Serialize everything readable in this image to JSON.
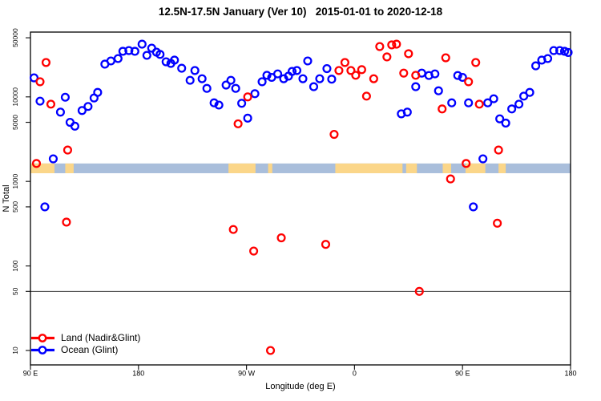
{
  "chart_data": {
    "type": "scatter",
    "title": "12.5N-17.5N January (Ver 10)   2015-01-01 to 2020-12-18",
    "xlabel": "Longitude (deg E)",
    "ylabel": "N Total",
    "x_axis": {
      "min": 90,
      "max": 540,
      "ticks": [
        {
          "value": 90,
          "label": "90 E"
        },
        {
          "value": 180,
          "label": "180"
        },
        {
          "value": 270,
          "label": "90 W"
        },
        {
          "value": 360,
          "label": "0"
        },
        {
          "value": 450,
          "label": "90 E"
        },
        {
          "value": 540,
          "label": "180"
        }
      ]
    },
    "y_axis": {
      "scale": "log",
      "min": 6.75,
      "max": 58400,
      "ticks": [
        {
          "value": 50000,
          "label": "50000"
        },
        {
          "value": 10000,
          "label": "10000"
        },
        {
          "value": 5000,
          "label": "5000"
        },
        {
          "value": 1000,
          "label": "1000"
        },
        {
          "value": 500,
          "label": "500"
        },
        {
          "value": 100,
          "label": "100"
        },
        {
          "value": 50,
          "label": "50"
        },
        {
          "value": 10,
          "label": "10"
        }
      ]
    },
    "reference_line": {
      "value": 50,
      "color": "#3c3c3c"
    },
    "map_band": {
      "n_range": [
        1250,
        1630
      ],
      "ocean_color": "#a9bedb",
      "land_color": "#fbd689",
      "land_segments_deg": [
        [
          90,
          110
        ],
        [
          119,
          126
        ],
        [
          255,
          277.5
        ],
        [
          288,
          291.5
        ],
        [
          344,
          400
        ],
        [
          403,
          412
        ],
        [
          433.5,
          440.5
        ],
        [
          452.5,
          469
        ],
        [
          480,
          486
        ]
      ]
    },
    "series": [
      {
        "name": "Land (Nadir&Glint)",
        "color": "#ff0000",
        "points": [
          [
            95,
            1630
          ],
          [
            98,
            15100
          ],
          [
            103,
            25500
          ],
          [
            107,
            8200
          ],
          [
            120,
            330
          ],
          [
            121,
            2350
          ],
          [
            259,
            270
          ],
          [
            263,
            4800
          ],
          [
            271,
            10000
          ],
          [
            276,
            150
          ],
          [
            290,
            10
          ],
          [
            299,
            215
          ],
          [
            336,
            180
          ],
          [
            343,
            3600
          ],
          [
            347,
            20500
          ],
          [
            352,
            25500
          ],
          [
            357,
            20500
          ],
          [
            361,
            18000
          ],
          [
            366,
            21000
          ],
          [
            370,
            10200
          ],
          [
            376,
            16400
          ],
          [
            381,
            39400
          ],
          [
            387,
            29700
          ],
          [
            391,
            41200
          ],
          [
            395,
            42000
          ],
          [
            401,
            19100
          ],
          [
            405,
            32400
          ],
          [
            411,
            18000
          ],
          [
            414,
            50
          ],
          [
            433,
            7200
          ],
          [
            436,
            29000
          ],
          [
            440,
            1070
          ],
          [
            453,
            1630
          ],
          [
            455,
            15100
          ],
          [
            461,
            25500
          ],
          [
            464,
            8200
          ],
          [
            479,
            320
          ],
          [
            480,
            2350
          ]
        ]
      },
      {
        "name": "Ocean (Glint)",
        "color": "#0000ff",
        "points": [
          [
            93,
            16800
          ],
          [
            98,
            8900
          ],
          [
            102,
            500
          ],
          [
            109,
            1850
          ],
          [
            115,
            6600
          ],
          [
            119,
            9900
          ],
          [
            123,
            5000
          ],
          [
            127,
            4500
          ],
          [
            133,
            6900
          ],
          [
            138,
            7700
          ],
          [
            143,
            9700
          ],
          [
            146,
            11300
          ],
          [
            152,
            24400
          ],
          [
            157,
            26600
          ],
          [
            163,
            28400
          ],
          [
            167,
            34600
          ],
          [
            172,
            35300
          ],
          [
            177,
            34600
          ],
          [
            183,
            42000
          ],
          [
            187,
            31000
          ],
          [
            191,
            37700
          ],
          [
            195,
            33800
          ],
          [
            198,
            31800
          ],
          [
            203,
            26000
          ],
          [
            207,
            24900
          ],
          [
            210,
            27200
          ],
          [
            216,
            21800
          ],
          [
            223,
            15700
          ],
          [
            227,
            20500
          ],
          [
            233,
            16400
          ],
          [
            237,
            12600
          ],
          [
            243,
            8500
          ],
          [
            247,
            8000
          ],
          [
            253,
            13800
          ],
          [
            257,
            15700
          ],
          [
            261,
            12600
          ],
          [
            266,
            8400
          ],
          [
            271,
            5600
          ],
          [
            277,
            10900
          ],
          [
            283,
            15100
          ],
          [
            287,
            18000
          ],
          [
            291,
            17000
          ],
          [
            296,
            18700
          ],
          [
            301,
            16400
          ],
          [
            305,
            17600
          ],
          [
            308,
            20000
          ],
          [
            312,
            20500
          ],
          [
            317,
            16400
          ],
          [
            321,
            26600
          ],
          [
            326,
            13200
          ],
          [
            331,
            16400
          ],
          [
            337,
            21600
          ],
          [
            341,
            16200
          ],
          [
            399,
            6300
          ],
          [
            404,
            6600
          ],
          [
            411,
            13200
          ],
          [
            416,
            19100
          ],
          [
            422,
            17900
          ],
          [
            427,
            18700
          ],
          [
            430,
            11800
          ],
          [
            441,
            8500
          ],
          [
            446,
            17900
          ],
          [
            450,
            17000
          ],
          [
            455,
            8500
          ],
          [
            459,
            500
          ],
          [
            467,
            1850
          ],
          [
            471,
            8500
          ],
          [
            476,
            9500
          ],
          [
            481,
            5500
          ],
          [
            486,
            4900
          ],
          [
            491,
            7200
          ],
          [
            497,
            8200
          ],
          [
            501,
            10200
          ],
          [
            506,
            11300
          ],
          [
            511,
            23300
          ],
          [
            516,
            27200
          ],
          [
            521,
            28400
          ],
          [
            526,
            35300
          ],
          [
            531,
            35300
          ],
          [
            535,
            34600
          ],
          [
            538,
            33500
          ]
        ]
      }
    ]
  }
}
